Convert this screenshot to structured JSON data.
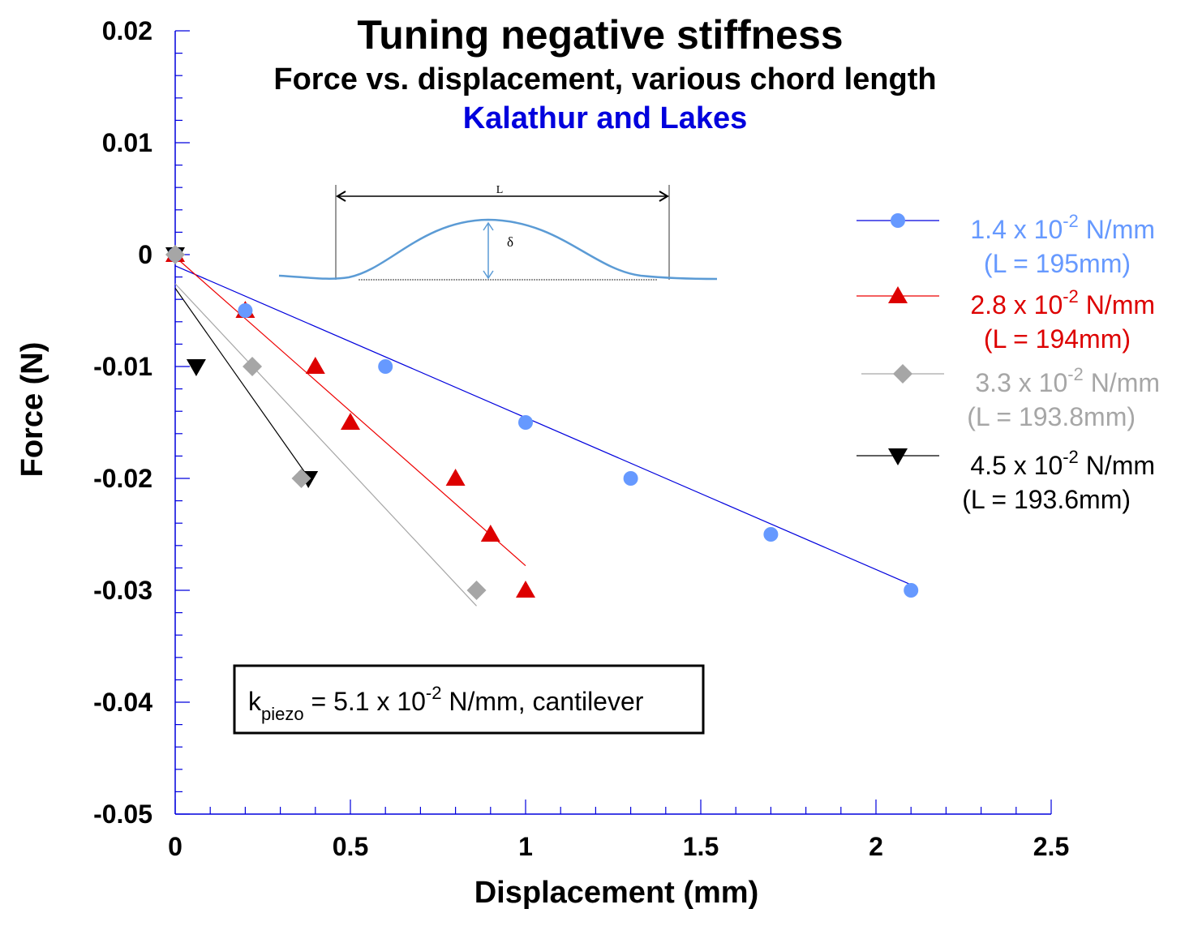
{
  "chart_data": {
    "type": "scatter",
    "title": "Tuning negative stiffness",
    "subtitle": "Force vs. displacement, various chord length",
    "author": "Kalathur and Lakes",
    "xlabel": "Displacement (mm)",
    "ylabel": "Force (N)",
    "xlim": [
      0,
      2.5
    ],
    "ylim": [
      -0.05,
      0.02
    ],
    "xticks": [
      "0",
      "0.5",
      "1",
      "1.5",
      "2",
      "2.5"
    ],
    "yticks": [
      "0.02",
      "0.01",
      "0",
      "-0.01",
      "-0.02",
      "-0.03",
      "-0.04",
      "-0.05"
    ],
    "grid": false,
    "legend_placement": "right",
    "annotation": {
      "k": "k",
      "sub": "piezo",
      "rest": " = 5.1 x 10",
      "exp": "-2",
      "tail": " N/mm, cantilever"
    },
    "inset": {
      "length_label": "L",
      "deflection_label": "δ"
    },
    "series": [
      {
        "name": "1.4 x 10-2 N/mm (L = 195mm)",
        "legend_main": "1.4 x 10",
        "legend_exp": "-2",
        "legend_unit": " N/mm",
        "legend_sub": "(L = 195mm)",
        "color": "#6699ff",
        "line_color": "#0000dd",
        "marker": "circle",
        "x": [
          0,
          0.2,
          0.6,
          1.0,
          1.3,
          1.7,
          2.1
        ],
        "y": [
          0,
          -0.005,
          -0.01,
          -0.015,
          -0.02,
          -0.025,
          -0.03
        ],
        "fit": [
          [
            0,
            -0.001
          ],
          [
            2.1,
            -0.0295
          ]
        ]
      },
      {
        "name": "2.8 x 10-2 N/mm (L = 194mm)",
        "legend_main": "2.8 x 10",
        "legend_exp": "-2",
        "legend_unit": " N/mm",
        "legend_sub": "(L = 194mm)",
        "color": "#dd0000",
        "line_color": "#ee0000",
        "marker": "triangle-up",
        "x": [
          0,
          0.2,
          0.4,
          0.5,
          0.8,
          0.9,
          1.0
        ],
        "y": [
          0,
          -0.005,
          -0.01,
          -0.015,
          -0.02,
          -0.025,
          -0.03
        ],
        "fit": [
          [
            0,
            -0.0002
          ],
          [
            1.0,
            -0.0278
          ]
        ]
      },
      {
        "name": "3.3 x 10-2 N/mm (L = 193.8mm)",
        "legend_main": "3.3 x 10",
        "legend_exp": "-2",
        "legend_unit": " N/mm",
        "legend_sub": "(L = 193.8mm)",
        "color": "#a6a6a6",
        "line_color": "#a6a6a6",
        "marker": "diamond",
        "x": [
          0,
          0.22,
          0.36,
          0.86
        ],
        "y": [
          0,
          -0.01,
          -0.02,
          -0.03
        ],
        "fit": [
          [
            0,
            -0.0026
          ],
          [
            0.86,
            -0.0314
          ]
        ]
      },
      {
        "name": "4.5 x 10-2 N/mm (L = 193.6mm)",
        "legend_main": "4.5 x 10",
        "legend_exp": "-2",
        "legend_unit": " N/mm",
        "legend_sub": "(L = 193.6mm)",
        "color": "#000000",
        "line_color": "#000000",
        "marker": "triangle-down",
        "x": [
          0,
          0.06,
          0.38
        ],
        "y": [
          0,
          -0.01,
          -0.02
        ],
        "fit": [
          [
            0,
            -0.003
          ],
          [
            0.38,
            -0.0199
          ]
        ]
      }
    ]
  }
}
